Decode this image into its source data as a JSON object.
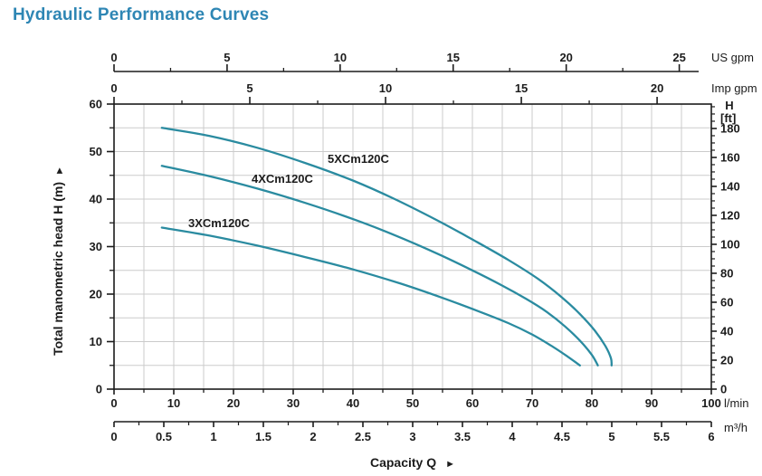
{
  "title": "Hydraulic Performance Curves",
  "icons": {
    "right_arrow": "►",
    "up_arrow": "►"
  },
  "chart_data": {
    "type": "line",
    "title": "Hydraulic Performance Curves",
    "xlabel": "Capacity Q",
    "ylabel": "Total manometric head H (m)",
    "grid": true,
    "legend_position": "labels-on-curves",
    "axes": {
      "x_lmin": {
        "unit": "l/min",
        "range": [
          0,
          100
        ],
        "majors": [
          0,
          10,
          20,
          30,
          40,
          50,
          60,
          70,
          80,
          90,
          100
        ],
        "minor_step": 5
      },
      "x_m3h": {
        "unit": "m³/h",
        "majors": [
          0,
          0.5,
          1,
          1.5,
          2,
          2.5,
          3,
          3.5,
          4,
          4.5,
          5,
          5.5,
          6
        ],
        "minor_step": 0.25,
        "lmin_per_unit": 16.6667
      },
      "x_usgpm": {
        "unit": "US gpm",
        "majors": [
          0,
          5,
          10,
          15,
          20,
          25
        ],
        "minor_step": 2.5,
        "lmin_per_unit": 3.78541
      },
      "x_impgpm": {
        "unit": "Imp gpm",
        "majors": [
          0,
          5,
          10,
          15,
          20
        ],
        "minor_step": 2.5,
        "lmin_per_unit": 4.54609
      },
      "y_m": {
        "unit": "m",
        "range": [
          0,
          60
        ],
        "majors": [
          0,
          10,
          20,
          30,
          40,
          50,
          60
        ],
        "minor_step": 5
      },
      "y_ft": {
        "header_top": "H",
        "header_bottom": "[ft]",
        "majors": [
          0,
          20,
          40,
          60,
          80,
          100,
          120,
          140,
          160,
          180
        ],
        "minor_step": 5,
        "minor_max": 195,
        "m_per_unit": 0.3048
      }
    },
    "series": [
      {
        "name": "3XCm120C",
        "points": [
          [
            8,
            34
          ],
          [
            16,
            32.3
          ],
          [
            24,
            30.2
          ],
          [
            32,
            27.8
          ],
          [
            40,
            25.2
          ],
          [
            48,
            22.2
          ],
          [
            55,
            19.2
          ],
          [
            61,
            16.4
          ],
          [
            66,
            13.9
          ],
          [
            70,
            11.5
          ],
          [
            73.5,
            8.9
          ],
          [
            76,
            6.8
          ],
          [
            78,
            5
          ]
        ]
      },
      {
        "name": "4XCm120C",
        "points": [
          [
            8,
            47
          ],
          [
            16,
            44.8
          ],
          [
            24,
            42.2
          ],
          [
            32,
            39.2
          ],
          [
            40,
            35.8
          ],
          [
            47,
            32.4
          ],
          [
            54,
            28.6
          ],
          [
            60,
            25
          ],
          [
            65,
            21.8
          ],
          [
            69,
            19
          ],
          [
            72.5,
            16.2
          ],
          [
            75.5,
            13.2
          ],
          [
            78,
            10.2
          ],
          [
            80,
            7.2
          ],
          [
            81,
            5
          ]
        ]
      },
      {
        "name": "5XCm120C",
        "points": [
          [
            8,
            55
          ],
          [
            16,
            53.3
          ],
          [
            24,
            50.8
          ],
          [
            32,
            47.6
          ],
          [
            40,
            43.9
          ],
          [
            47,
            40
          ],
          [
            54,
            35.6
          ],
          [
            60,
            31.5
          ],
          [
            66,
            27.2
          ],
          [
            71,
            23.2
          ],
          [
            75,
            19.3
          ],
          [
            78,
            15.8
          ],
          [
            80.5,
            12.3
          ],
          [
            82.3,
            9
          ],
          [
            83.2,
            6.5
          ],
          [
            83.3,
            5
          ]
        ]
      }
    ],
    "colors": {
      "curve": "#2a8ba0",
      "grid": "#cbcbcb",
      "axis": "#1c1c1c",
      "text": "#1c1c1c",
      "title": "#2e86b4"
    }
  }
}
